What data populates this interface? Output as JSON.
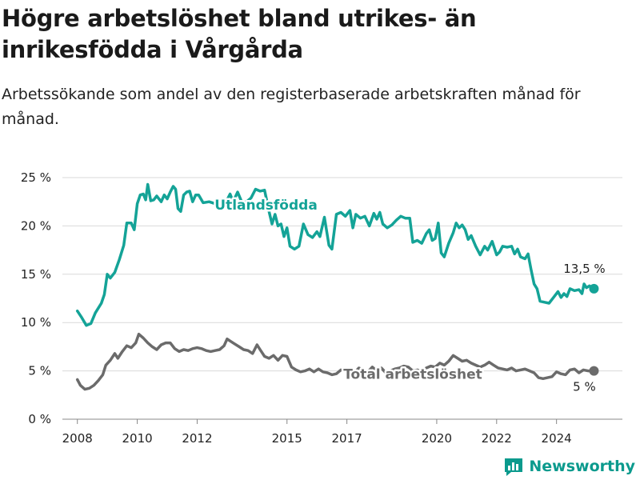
{
  "chart_data": {
    "type": "line",
    "title": "Högre arbetslöshet bland utrikes- än inrikesfödda i Vårgårda",
    "subtitle": "Arbetssökande som andel av den registerbaserade arbetskraften månad för månad.",
    "xlabel": "",
    "ylabel": "",
    "ylim": [
      0,
      25
    ],
    "y_ticks": [
      0,
      5,
      10,
      15,
      20,
      25
    ],
    "y_tick_labels": [
      "0 %",
      "5 %",
      "10 %",
      "15 %",
      "20 %",
      "25 %"
    ],
    "x_ticks": [
      2008,
      2010,
      2012,
      2015,
      2017,
      2020,
      2022,
      2024
    ],
    "xlim": [
      2007.5,
      2026.2
    ],
    "grid": true,
    "legend": "inline labels",
    "series": [
      {
        "name": "Utlandsfödda",
        "color": "#14a397",
        "end_label": "13,5 %",
        "points": [
          [
            2008.0,
            11.2
          ],
          [
            2008.15,
            10.5
          ],
          [
            2008.3,
            9.7
          ],
          [
            2008.45,
            9.9
          ],
          [
            2008.6,
            11.0
          ],
          [
            2008.8,
            12.0
          ],
          [
            2008.9,
            12.9
          ],
          [
            2009.0,
            15.0
          ],
          [
            2009.1,
            14.6
          ],
          [
            2009.25,
            15.2
          ],
          [
            2009.4,
            16.5
          ],
          [
            2009.55,
            18.0
          ],
          [
            2009.65,
            20.3
          ],
          [
            2009.8,
            20.3
          ],
          [
            2009.9,
            19.6
          ],
          [
            2010.0,
            22.3
          ],
          [
            2010.1,
            23.2
          ],
          [
            2010.2,
            23.3
          ],
          [
            2010.28,
            22.7
          ],
          [
            2010.35,
            24.3
          ],
          [
            2010.45,
            22.6
          ],
          [
            2010.55,
            22.7
          ],
          [
            2010.65,
            23.1
          ],
          [
            2010.8,
            22.5
          ],
          [
            2010.9,
            23.2
          ],
          [
            2011.0,
            22.8
          ],
          [
            2011.1,
            23.5
          ],
          [
            2011.2,
            24.1
          ],
          [
            2011.28,
            23.8
          ],
          [
            2011.36,
            21.8
          ],
          [
            2011.45,
            21.5
          ],
          [
            2011.55,
            23.2
          ],
          [
            2011.65,
            23.5
          ],
          [
            2011.75,
            23.6
          ],
          [
            2011.85,
            22.5
          ],
          [
            2011.95,
            23.2
          ],
          [
            2012.05,
            23.2
          ],
          [
            2012.2,
            22.4
          ],
          [
            2012.4,
            22.5
          ],
          [
            2012.6,
            22.3
          ],
          [
            2012.8,
            22.6
          ],
          [
            2012.95,
            22.4
          ],
          [
            2013.1,
            23.3
          ],
          [
            2013.2,
            22.5
          ],
          [
            2013.35,
            23.5
          ],
          [
            2013.5,
            22.4
          ],
          [
            2013.65,
            22.5
          ],
          [
            2013.8,
            22.9
          ],
          [
            2013.95,
            23.8
          ],
          [
            2014.1,
            23.6
          ],
          [
            2014.25,
            23.7
          ],
          [
            2014.4,
            21.5
          ],
          [
            2014.5,
            20.2
          ],
          [
            2014.6,
            21.2
          ],
          [
            2014.7,
            20.0
          ],
          [
            2014.8,
            20.2
          ],
          [
            2014.9,
            18.9
          ],
          [
            2015.0,
            19.8
          ],
          [
            2015.1,
            17.9
          ],
          [
            2015.25,
            17.6
          ],
          [
            2015.4,
            17.9
          ],
          [
            2015.55,
            20.2
          ],
          [
            2015.7,
            19.1
          ],
          [
            2015.85,
            18.8
          ],
          [
            2016.0,
            19.4
          ],
          [
            2016.1,
            18.9
          ],
          [
            2016.25,
            20.9
          ],
          [
            2016.4,
            18.0
          ],
          [
            2016.5,
            17.6
          ],
          [
            2016.65,
            21.2
          ],
          [
            2016.8,
            21.4
          ],
          [
            2016.95,
            21.0
          ],
          [
            2017.1,
            21.6
          ],
          [
            2017.2,
            19.8
          ],
          [
            2017.3,
            21.2
          ],
          [
            2017.45,
            20.8
          ],
          [
            2017.6,
            21.0
          ],
          [
            2017.75,
            20.0
          ],
          [
            2017.9,
            21.3
          ],
          [
            2018.0,
            20.7
          ],
          [
            2018.1,
            21.4
          ],
          [
            2018.2,
            20.2
          ],
          [
            2018.35,
            19.8
          ],
          [
            2018.5,
            20.1
          ],
          [
            2018.65,
            20.6
          ],
          [
            2018.8,
            21.0
          ],
          [
            2018.95,
            20.8
          ],
          [
            2019.1,
            20.8
          ],
          [
            2019.2,
            18.3
          ],
          [
            2019.35,
            18.5
          ],
          [
            2019.5,
            18.2
          ],
          [
            2019.65,
            19.2
          ],
          [
            2019.75,
            19.6
          ],
          [
            2019.85,
            18.5
          ],
          [
            2019.95,
            18.7
          ],
          [
            2020.05,
            20.3
          ],
          [
            2020.15,
            17.2
          ],
          [
            2020.25,
            16.8
          ],
          [
            2020.4,
            18.2
          ],
          [
            2020.55,
            19.3
          ],
          [
            2020.65,
            20.3
          ],
          [
            2020.75,
            19.8
          ],
          [
            2020.85,
            20.1
          ],
          [
            2020.95,
            19.6
          ],
          [
            2021.05,
            18.6
          ],
          [
            2021.15,
            19.0
          ],
          [
            2021.3,
            17.9
          ],
          [
            2021.45,
            17.0
          ],
          [
            2021.6,
            17.9
          ],
          [
            2021.7,
            17.5
          ],
          [
            2021.85,
            18.4
          ],
          [
            2022.0,
            17.0
          ],
          [
            2022.1,
            17.3
          ],
          [
            2022.2,
            17.9
          ],
          [
            2022.35,
            17.8
          ],
          [
            2022.5,
            17.9
          ],
          [
            2022.6,
            17.1
          ],
          [
            2022.7,
            17.6
          ],
          [
            2022.8,
            16.8
          ],
          [
            2022.95,
            16.6
          ],
          [
            2023.05,
            17.1
          ],
          [
            2023.15,
            15.5
          ],
          [
            2023.25,
            14.0
          ],
          [
            2023.35,
            13.5
          ],
          [
            2023.45,
            12.2
          ],
          [
            2023.6,
            12.1
          ],
          [
            2023.75,
            12.0
          ],
          [
            2023.9,
            12.6
          ],
          [
            2024.05,
            13.2
          ],
          [
            2024.15,
            12.6
          ],
          [
            2024.25,
            13.0
          ],
          [
            2024.35,
            12.7
          ],
          [
            2024.45,
            13.5
          ],
          [
            2024.6,
            13.3
          ],
          [
            2024.75,
            13.4
          ],
          [
            2024.85,
            13.0
          ],
          [
            2024.92,
            14.0
          ],
          [
            2025.0,
            13.6
          ],
          [
            2025.1,
            13.8
          ],
          [
            2025.25,
            13.5
          ]
        ]
      },
      {
        "name": "Total arbetslöshet",
        "color": "#6b6b6b",
        "end_label": "5 %",
        "points": [
          [
            2008.0,
            4.1
          ],
          [
            2008.1,
            3.5
          ],
          [
            2008.25,
            3.1
          ],
          [
            2008.4,
            3.2
          ],
          [
            2008.55,
            3.5
          ],
          [
            2008.7,
            4.0
          ],
          [
            2008.85,
            4.6
          ],
          [
            2008.95,
            5.6
          ],
          [
            2009.1,
            6.1
          ],
          [
            2009.25,
            6.8
          ],
          [
            2009.35,
            6.3
          ],
          [
            2009.5,
            7.0
          ],
          [
            2009.65,
            7.6
          ],
          [
            2009.8,
            7.4
          ],
          [
            2009.95,
            7.9
          ],
          [
            2010.05,
            8.8
          ],
          [
            2010.2,
            8.4
          ],
          [
            2010.35,
            7.9
          ],
          [
            2010.5,
            7.5
          ],
          [
            2010.65,
            7.2
          ],
          [
            2010.8,
            7.7
          ],
          [
            2010.95,
            7.9
          ],
          [
            2011.1,
            7.9
          ],
          [
            2011.25,
            7.3
          ],
          [
            2011.4,
            7.0
          ],
          [
            2011.55,
            7.2
          ],
          [
            2011.7,
            7.1
          ],
          [
            2011.85,
            7.3
          ],
          [
            2012.0,
            7.4
          ],
          [
            2012.15,
            7.3
          ],
          [
            2012.3,
            7.1
          ],
          [
            2012.45,
            7.0
          ],
          [
            2012.6,
            7.1
          ],
          [
            2012.75,
            7.2
          ],
          [
            2012.9,
            7.6
          ],
          [
            2013.0,
            8.3
          ],
          [
            2013.1,
            8.1
          ],
          [
            2013.25,
            7.8
          ],
          [
            2013.4,
            7.5
          ],
          [
            2013.55,
            7.2
          ],
          [
            2013.7,
            7.1
          ],
          [
            2013.85,
            6.8
          ],
          [
            2014.0,
            7.7
          ],
          [
            2014.1,
            7.2
          ],
          [
            2014.25,
            6.5
          ],
          [
            2014.4,
            6.3
          ],
          [
            2014.55,
            6.6
          ],
          [
            2014.7,
            6.1
          ],
          [
            2014.85,
            6.6
          ],
          [
            2015.0,
            6.5
          ],
          [
            2015.15,
            5.4
          ],
          [
            2015.3,
            5.1
          ],
          [
            2015.45,
            4.9
          ],
          [
            2015.6,
            5.0
          ],
          [
            2015.75,
            5.2
          ],
          [
            2015.9,
            4.9
          ],
          [
            2016.05,
            5.2
          ],
          [
            2016.2,
            4.9
          ],
          [
            2016.35,
            4.8
          ],
          [
            2016.5,
            4.6
          ],
          [
            2016.65,
            4.7
          ],
          [
            2016.8,
            5.1
          ],
          [
            2016.95,
            5.0
          ],
          [
            2017.1,
            5.1
          ],
          [
            2017.25,
            4.8
          ],
          [
            2017.4,
            5.3
          ],
          [
            2017.55,
            5.1
          ],
          [
            2017.7,
            4.9
          ],
          [
            2017.85,
            5.4
          ],
          [
            2018.0,
            5.0
          ],
          [
            2018.15,
            5.3
          ],
          [
            2018.3,
            4.8
          ],
          [
            2018.45,
            5.0
          ],
          [
            2018.6,
            5.2
          ],
          [
            2018.75,
            5.3
          ],
          [
            2018.9,
            5.5
          ],
          [
            2019.05,
            5.4
          ],
          [
            2019.2,
            5.0
          ],
          [
            2019.35,
            5.1
          ],
          [
            2019.5,
            4.9
          ],
          [
            2019.65,
            5.3
          ],
          [
            2019.8,
            5.5
          ],
          [
            2019.95,
            5.4
          ],
          [
            2020.1,
            5.8
          ],
          [
            2020.25,
            5.6
          ],
          [
            2020.4,
            6.0
          ],
          [
            2020.55,
            6.6
          ],
          [
            2020.7,
            6.3
          ],
          [
            2020.85,
            6.0
          ],
          [
            2021.0,
            6.1
          ],
          [
            2021.15,
            5.8
          ],
          [
            2021.3,
            5.6
          ],
          [
            2021.45,
            5.4
          ],
          [
            2021.6,
            5.6
          ],
          [
            2021.75,
            5.9
          ],
          [
            2021.9,
            5.6
          ],
          [
            2022.05,
            5.3
          ],
          [
            2022.2,
            5.2
          ],
          [
            2022.35,
            5.1
          ],
          [
            2022.5,
            5.3
          ],
          [
            2022.65,
            5.0
          ],
          [
            2022.8,
            5.1
          ],
          [
            2022.95,
            5.2
          ],
          [
            2023.1,
            5.0
          ],
          [
            2023.25,
            4.8
          ],
          [
            2023.4,
            4.3
          ],
          [
            2023.55,
            4.2
          ],
          [
            2023.7,
            4.3
          ],
          [
            2023.85,
            4.4
          ],
          [
            2024.0,
            4.9
          ],
          [
            2024.15,
            4.7
          ],
          [
            2024.3,
            4.6
          ],
          [
            2024.45,
            5.1
          ],
          [
            2024.6,
            5.2
          ],
          [
            2024.75,
            4.8
          ],
          [
            2024.9,
            5.1
          ],
          [
            2025.05,
            5.0
          ],
          [
            2025.25,
            5.0
          ]
        ]
      }
    ]
  },
  "brand": {
    "name": "Newsworthy"
  }
}
